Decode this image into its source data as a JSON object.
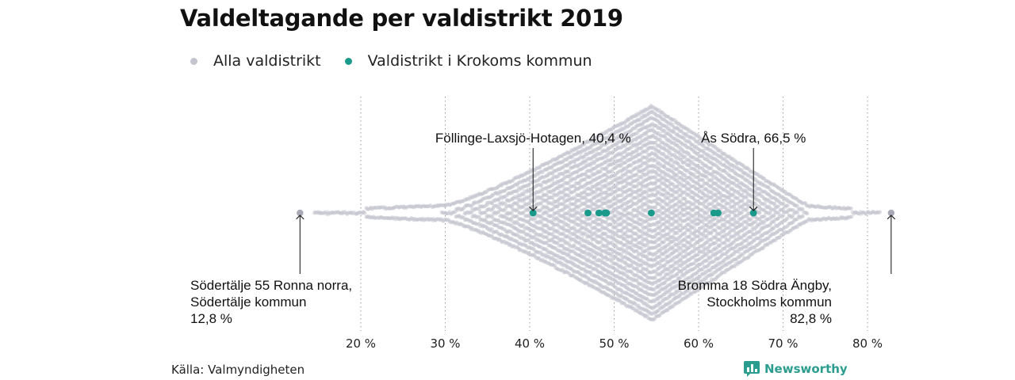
{
  "chart_data": {
    "type": "beeswarm",
    "title": "Valdeltagande per valdistrikt 2019",
    "xlim": [
      10,
      85
    ],
    "x_ticks": [
      20,
      30,
      40,
      50,
      60,
      70,
      80
    ],
    "x_tick_labels": [
      "20 %",
      "30 %",
      "40 %",
      "50 %",
      "60 %",
      "70 %",
      "80 %"
    ],
    "grid": "vertical-dotted",
    "series": [
      {
        "name": "Alla valdistrikt",
        "color": "#c4c4cf",
        "min": 12.8,
        "max": 82.8,
        "median": 54.5
      },
      {
        "name": "Valdistrikt i Krokoms kommun",
        "color": "#1a9a8a",
        "values": [
          40.4,
          46.9,
          48.2,
          48.9,
          49.1,
          54.4,
          61.8,
          62.3,
          66.5
        ]
      }
    ],
    "annotations": [
      {
        "label": "Föllinge-Laxsjö-Hotagen, 40,4 %",
        "x": 40.4,
        "position": "above"
      },
      {
        "label": "Ås Södra, 66,5 %",
        "x": 66.5,
        "position": "above"
      },
      {
        "lines": [
          "Södertälje 55 Ronna norra,",
          "Södertälje kommun",
          "12,8 %"
        ],
        "x": 12.8,
        "position": "below",
        "align": "left"
      },
      {
        "lines": [
          "Bromma 18 Södra Ängby,",
          "Stockholms kommun",
          "82,8 %"
        ],
        "x": 82.8,
        "position": "below",
        "align": "right"
      }
    ]
  },
  "legend": [
    {
      "label": "Alla valdistrikt",
      "color": "#c4c4cf"
    },
    {
      "label": "Valdistrikt i Krokoms kommun",
      "color": "#1a9a8a"
    }
  ],
  "source": "Källa: Valmyndigheten",
  "brand": {
    "name": "Newsworthy",
    "icon": "bar-chart-speech-icon",
    "color": "#2a9d8f"
  }
}
